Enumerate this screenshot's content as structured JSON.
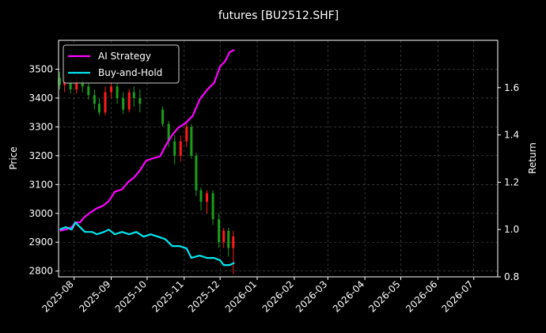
{
  "chart_data": {
    "type": "line",
    "title": "futures [BU2512.SHF]",
    "ylabel_left": "Price",
    "ylabel_right": "Return",
    "x_axis": {
      "type": "date",
      "range": [
        "2025-07-19",
        "2026-07-21"
      ],
      "ticks": [
        "2025-08",
        "2025-09",
        "2025-10",
        "2025-11",
        "2025-12",
        "2026-01",
        "2026-02",
        "2026-03",
        "2026-04",
        "2026-05",
        "2026-06",
        "2026-07"
      ]
    },
    "y_left": {
      "range": [
        2780,
        3600
      ],
      "ticks": [
        2800,
        2900,
        3000,
        3100,
        3200,
        3300,
        3400,
        3500
      ]
    },
    "y_right": {
      "range": [
        0.8,
        1.8
      ],
      "ticks": [
        0.8,
        1.0,
        1.2,
        1.4,
        1.6
      ]
    },
    "grid": true,
    "legend_position": "top-left",
    "colors": {
      "background": "#000000",
      "ai_strategy": "#ff00ff",
      "buy_and_hold": "#00e5ee",
      "candle_up": "#ff1a1a",
      "candle_down": "#1a9e1a",
      "grid": "#555555"
    },
    "series": [
      {
        "name": "AI Strategy",
        "axis": "right",
        "points": [
          [
            "2025-07-20",
            0.995
          ],
          [
            "2025-07-25",
            1.0
          ],
          [
            "2025-07-30",
            1.01
          ],
          [
            "2025-08-02",
            1.03
          ],
          [
            "2025-08-06",
            1.03
          ],
          [
            "2025-08-09",
            1.05
          ],
          [
            "2025-08-14",
            1.07
          ],
          [
            "2025-08-20",
            1.09
          ],
          [
            "2025-08-25",
            1.1
          ],
          [
            "2025-08-30",
            1.12
          ],
          [
            "2025-09-04",
            1.16
          ],
          [
            "2025-09-10",
            1.17
          ],
          [
            "2025-09-15",
            1.2
          ],
          [
            "2025-09-20",
            1.22
          ],
          [
            "2025-09-25",
            1.25
          ],
          [
            "2025-09-30",
            1.29
          ],
          [
            "2025-10-05",
            1.3
          ],
          [
            "2025-10-12",
            1.31
          ],
          [
            "2025-10-16",
            1.35
          ],
          [
            "2025-10-22",
            1.4
          ],
          [
            "2025-10-27",
            1.43
          ],
          [
            "2025-11-02",
            1.45
          ],
          [
            "2025-11-08",
            1.48
          ],
          [
            "2025-11-14",
            1.55
          ],
          [
            "2025-11-20",
            1.59
          ],
          [
            "2025-11-26",
            1.62
          ],
          [
            "2025-12-01",
            1.69
          ],
          [
            "2025-12-05",
            1.71
          ],
          [
            "2025-12-09",
            1.75
          ],
          [
            "2025-12-13",
            1.76
          ]
        ]
      },
      {
        "name": "Buy-and-Hold",
        "axis": "right",
        "points": [
          [
            "2025-07-20",
            1.0
          ],
          [
            "2025-07-25",
            1.01
          ],
          [
            "2025-07-30",
            1.0
          ],
          [
            "2025-08-02",
            1.03
          ],
          [
            "2025-08-06",
            1.01
          ],
          [
            "2025-08-10",
            0.99
          ],
          [
            "2025-08-16",
            0.99
          ],
          [
            "2025-08-20",
            0.98
          ],
          [
            "2025-08-26",
            0.99
          ],
          [
            "2025-08-30",
            1.0
          ],
          [
            "2025-09-04",
            0.98
          ],
          [
            "2025-09-10",
            0.99
          ],
          [
            "2025-09-16",
            0.98
          ],
          [
            "2025-09-22",
            0.99
          ],
          [
            "2025-09-28",
            0.97
          ],
          [
            "2025-10-04",
            0.98
          ],
          [
            "2025-10-10",
            0.97
          ],
          [
            "2025-10-16",
            0.96
          ],
          [
            "2025-10-22",
            0.93
          ],
          [
            "2025-10-28",
            0.93
          ],
          [
            "2025-11-03",
            0.92
          ],
          [
            "2025-11-07",
            0.88
          ],
          [
            "2025-11-14",
            0.89
          ],
          [
            "2025-11-20",
            0.88
          ],
          [
            "2025-11-26",
            0.88
          ],
          [
            "2025-12-01",
            0.87
          ],
          [
            "2025-12-04",
            0.85
          ],
          [
            "2025-12-09",
            0.85
          ],
          [
            "2025-12-13",
            0.86
          ]
        ]
      }
    ],
    "candles": [
      [
        "2025-07-20",
        3470,
        3445,
        3490,
        3430
      ],
      [
        "2025-07-24",
        3445,
        3455,
        3480,
        3420
      ],
      [
        "2025-07-29",
        3455,
        3430,
        3470,
        3415
      ],
      [
        "2025-08-03",
        3430,
        3460,
        3475,
        3415
      ],
      [
        "2025-08-08",
        3460,
        3440,
        3475,
        3420
      ],
      [
        "2025-08-13",
        3440,
        3410,
        3450,
        3395
      ],
      [
        "2025-08-18",
        3410,
        3380,
        3430,
        3360
      ],
      [
        "2025-08-22",
        3380,
        3350,
        3400,
        3340
      ],
      [
        "2025-08-27",
        3350,
        3420,
        3440,
        3340
      ],
      [
        "2025-09-01",
        3420,
        3440,
        3460,
        3400
      ],
      [
        "2025-09-06",
        3440,
        3400,
        3450,
        3380
      ],
      [
        "2025-09-11",
        3400,
        3360,
        3420,
        3345
      ],
      [
        "2025-09-16",
        3360,
        3420,
        3430,
        3350
      ],
      [
        "2025-09-20",
        3420,
        3400,
        3440,
        3370
      ],
      [
        "2025-09-25",
        3400,
        3380,
        3430,
        3350
      ],
      [
        "2025-10-14",
        3360,
        3310,
        3370,
        3300
      ],
      [
        "2025-10-19",
        3310,
        3250,
        3320,
        3230
      ],
      [
        "2025-10-24",
        3250,
        3200,
        3270,
        3170
      ],
      [
        "2025-10-29",
        3200,
        3250,
        3270,
        3180
      ],
      [
        "2025-11-03",
        3250,
        3300,
        3310,
        3230
      ],
      [
        "2025-11-07",
        3300,
        3200,
        3310,
        3190
      ],
      [
        "2025-11-11",
        3200,
        3080,
        3210,
        3060
      ],
      [
        "2025-11-15",
        3080,
        3040,
        3090,
        3010
      ],
      [
        "2025-11-20",
        3040,
        3070,
        3080,
        3000
      ],
      [
        "2025-11-25",
        3070,
        2980,
        3080,
        2960
      ],
      [
        "2025-11-30",
        2980,
        2900,
        3000,
        2880
      ],
      [
        "2025-12-04",
        2900,
        2940,
        2950,
        2880
      ],
      [
        "2025-12-08",
        2940,
        2880,
        2950,
        2850
      ],
      [
        "2025-12-12",
        2880,
        2920,
        2940,
        2790
      ]
    ],
    "legend": [
      {
        "name": "AI Strategy",
        "color": "#ff00ff"
      },
      {
        "name": "Buy-and-Hold",
        "color": "#00e5ee"
      }
    ]
  }
}
